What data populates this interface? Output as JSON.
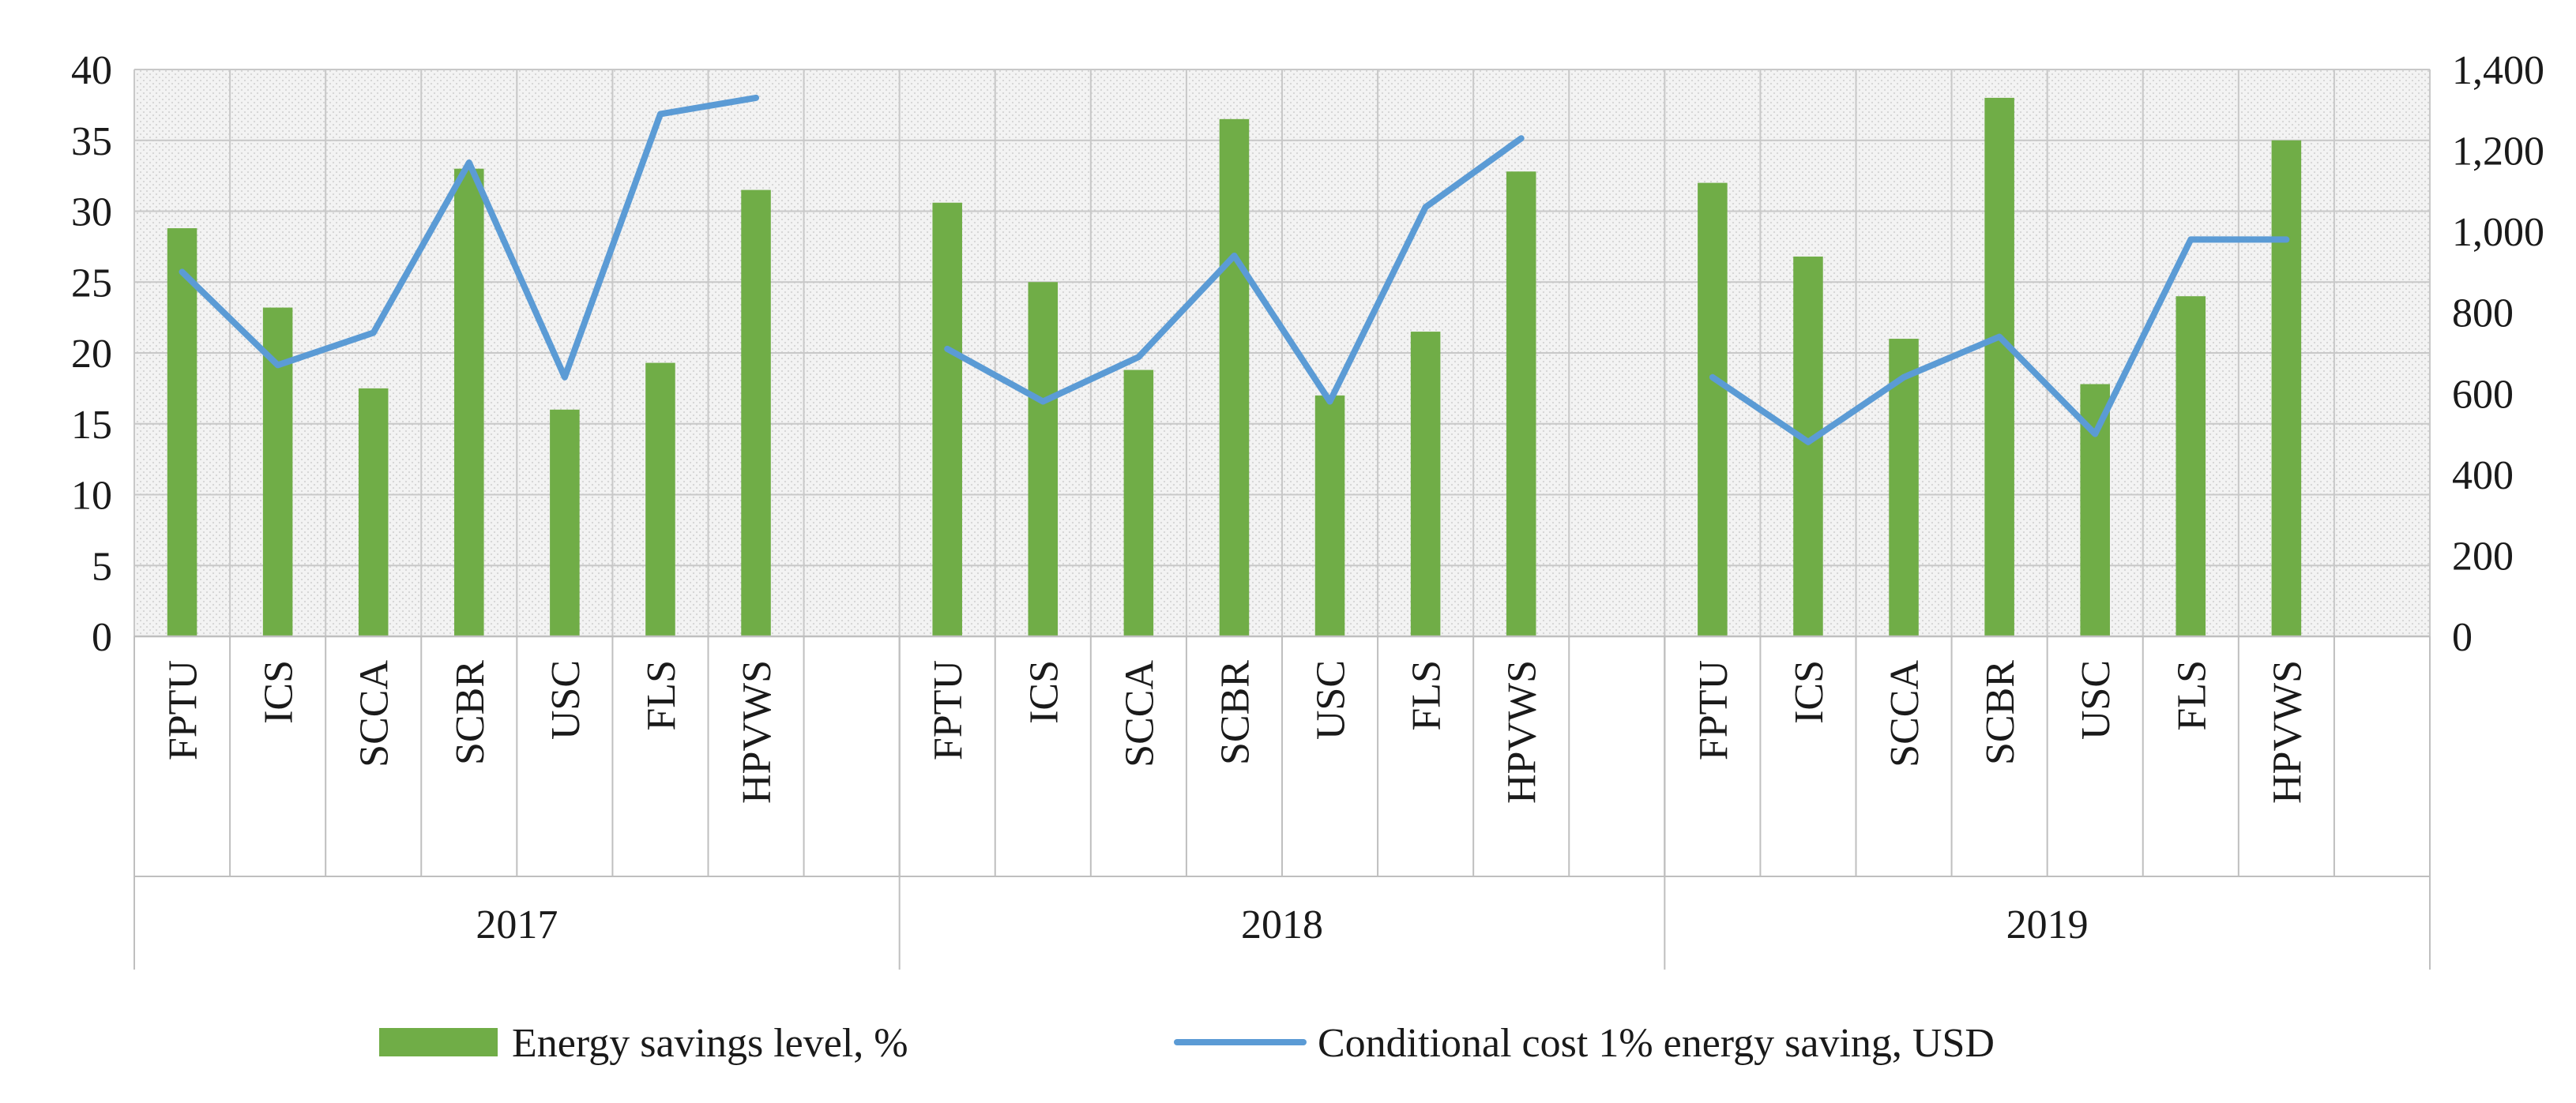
{
  "chart_data": {
    "type": "bar",
    "title": "",
    "xlabel": "",
    "ylabel": "",
    "y2label": "",
    "groups": [
      "2017",
      "2018",
      "2019"
    ],
    "categories": [
      "FPTU",
      "ICS",
      "SCCA",
      "SCBR",
      "USC",
      "FLS",
      "HPVWS"
    ],
    "ylim": [
      0,
      40
    ],
    "y_ticks": [
      "0",
      "5",
      "10",
      "15",
      "20",
      "25",
      "30",
      "35",
      "40"
    ],
    "y2lim": [
      0,
      1400
    ],
    "y2_ticks": [
      "0",
      "200",
      "400",
      "600",
      "800",
      "1,000",
      "1,200",
      "1,400"
    ],
    "grid": true,
    "legend_position": "bottom",
    "series": [
      {
        "name": "Energy savings level, %",
        "type": "bar",
        "axis": "left",
        "color": "#70ad47",
        "values": [
          [
            28.8,
            23.2,
            17.5,
            33.0,
            16.0,
            19.3,
            31.5
          ],
          [
            30.6,
            25.0,
            18.8,
            36.5,
            17.0,
            21.5,
            32.8
          ],
          [
            32.0,
            26.8,
            21.0,
            38.0,
            17.8,
            24.0,
            35.0
          ]
        ]
      },
      {
        "name": "Conditional cost 1% energy saving, USD",
        "type": "line",
        "axis": "right",
        "color": "#5b9bd5",
        "values": [
          [
            900,
            670,
            750,
            1170,
            640,
            1290,
            1330
          ],
          [
            710,
            580,
            690,
            940,
            580,
            1060,
            1230
          ],
          [
            640,
            480,
            640,
            740,
            500,
            980,
            980
          ]
        ]
      }
    ]
  }
}
